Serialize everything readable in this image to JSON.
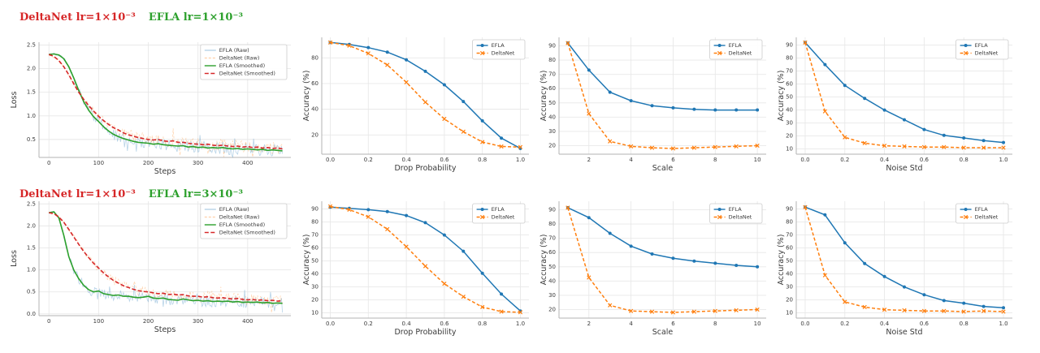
{
  "figure": {
    "colors": {
      "efla_blue": "#1f77b4",
      "deltanet_orange": "#ff7f0e",
      "efla_smoothed_green": "#2ca02c",
      "deltanet_smoothed_red": "#d62728",
      "grid": "#e8e8e8",
      "spine": "#b3b3b3"
    }
  },
  "chart_data": [
    {
      "id": "loss-row1",
      "type": "line",
      "kind": "loss",
      "title_red": "DeltaNet lr=1×10⁻³",
      "title_green": "EFLA lr=1×10⁻³",
      "xlabel": "Steps",
      "ylabel": "Loss",
      "xlim": [
        -20,
        487
      ],
      "ylim": [
        0.12,
        2.56
      ],
      "xticks": {
        "v": [
          0,
          100,
          200,
          300,
          400
        ],
        "l": [
          "0",
          "100",
          "200",
          "300",
          "400"
        ]
      },
      "yticks": {
        "v": [
          0.5,
          1.0,
          1.5,
          2.0,
          2.5
        ],
        "l": [
          "0.5",
          "1.0",
          "1.5",
          "2.0",
          "2.5"
        ]
      },
      "x_start": 0,
      "x_step": 10,
      "legend_position": "upper right",
      "grid": true,
      "series": [
        {
          "name": "EFLA (Raw)",
          "color": "#1f77b4",
          "width": 0.8,
          "opacity": 0.32,
          "from": 2,
          "noise": {
            "seed": 11,
            "amp0": 0.03,
            "amp1": 0.1,
            "step": 2,
            "spike": 0.06,
            "spike_mult": 2.3
          }
        },
        {
          "name": "DeltaNet (Raw)",
          "color": "#ff7f0e",
          "width": 0.8,
          "opacity": 0.32,
          "dash": [
            3,
            2
          ],
          "from": 3,
          "noise": {
            "seed": 29,
            "amp0": 0.03,
            "amp1": 0.1,
            "step": 2,
            "spike": 0.06,
            "spike_mult": 2.3
          }
        },
        {
          "name": "EFLA (Smoothed)",
          "color": "#2ca02c",
          "width": 1.6,
          "y": [
            2.3,
            2.31,
            2.29,
            2.21,
            2.04,
            1.8,
            1.54,
            1.3,
            1.12,
            0.98,
            0.88,
            0.77,
            0.68,
            0.61,
            0.56,
            0.52,
            0.49,
            0.46,
            0.44,
            0.43,
            0.42,
            0.4,
            0.41,
            0.39,
            0.38,
            0.37,
            0.36,
            0.37,
            0.34,
            0.35,
            0.33,
            0.34,
            0.32,
            0.33,
            0.32,
            0.33,
            0.31,
            0.3,
            0.31,
            0.29,
            0.3,
            0.29,
            0.28,
            0.29,
            0.27,
            0.28,
            0.27,
            0.26
          ]
        },
        {
          "name": "DeltaNet (Smoothed)",
          "color": "#d62728",
          "width": 1.6,
          "dash": [
            5,
            2.5
          ],
          "y": [
            2.3,
            2.26,
            2.17,
            2.04,
            1.87,
            1.68,
            1.5,
            1.35,
            1.22,
            1.1,
            0.99,
            0.9,
            0.82,
            0.75,
            0.7,
            0.64,
            0.6,
            0.57,
            0.54,
            0.52,
            0.5,
            0.49,
            0.5,
            0.47,
            0.46,
            0.47,
            0.44,
            0.44,
            0.42,
            0.41,
            0.4,
            0.39,
            0.4,
            0.38,
            0.37,
            0.38,
            0.36,
            0.35,
            0.36,
            0.34,
            0.35,
            0.33,
            0.34,
            0.32,
            0.33,
            0.31,
            0.32,
            0.3
          ]
        }
      ]
    },
    {
      "id": "drop-probability-row1",
      "type": "line",
      "kind": "acc",
      "xlabel": "Drop Probability",
      "ylabel": "Accuracy (%)",
      "x": [
        0.0,
        0.1,
        0.2,
        0.3,
        0.4,
        0.5,
        0.6,
        0.7,
        0.8,
        0.9,
        1.0
      ],
      "xlim": [
        -0.045,
        1.045
      ],
      "ylim": [
        5,
        96
      ],
      "xticks": {
        "v": [
          0.0,
          0.2,
          0.4,
          0.6,
          0.8,
          1.0
        ],
        "l": [
          "0.0",
          "0.2",
          "0.4",
          "0.6",
          "0.8",
          "1.0"
        ]
      },
      "yticks": {
        "v": [
          20,
          40,
          60,
          80
        ],
        "l": [
          "20",
          "40",
          "60",
          "80"
        ]
      },
      "legend_position": "upper right",
      "grid": true,
      "series": [
        {
          "name": "EFLA",
          "color": "#1f77b4",
          "width": 1.5,
          "marker": "circle",
          "y": [
            92,
            90.5,
            88,
            84.5,
            78.5,
            69.5,
            59,
            46,
            31,
            17.5,
            9.5
          ]
        },
        {
          "name": "DeltaNet",
          "color": "#ff7f0e",
          "width": 1.5,
          "dash": [
            4,
            2.5
          ],
          "marker": "x",
          "y": [
            92,
            89.5,
            83.5,
            74.5,
            61,
            45.5,
            32.5,
            22.5,
            14.5,
            11,
            10.5
          ]
        }
      ]
    },
    {
      "id": "scale-row1",
      "type": "line",
      "kind": "acc",
      "xlabel": "Scale",
      "ylabel": "Accuracy (%)",
      "x": [
        1,
        2,
        3,
        4,
        5,
        6,
        7,
        8,
        9,
        10
      ],
      "xlim": [
        0.58,
        10.42
      ],
      "ylim": [
        14,
        96
      ],
      "xticks": {
        "v": [
          2,
          4,
          6,
          8,
          10
        ],
        "l": [
          "2",
          "4",
          "6",
          "8",
          "10"
        ]
      },
      "yticks": {
        "v": [
          20,
          30,
          40,
          50,
          60,
          70,
          80,
          90
        ],
        "l": [
          "20",
          "30",
          "40",
          "50",
          "60",
          "70",
          "80",
          "90"
        ]
      },
      "legend_position": "upper right",
      "grid": true,
      "series": [
        {
          "name": "EFLA",
          "color": "#1f77b4",
          "width": 1.5,
          "marker": "circle",
          "y": [
            92,
            73,
            57.5,
            51.5,
            48,
            46.5,
            45.5,
            45,
            45,
            45
          ]
        },
        {
          "name": "DeltaNet",
          "color": "#ff7f0e",
          "width": 1.5,
          "dash": [
            4,
            2.5
          ],
          "marker": "x",
          "y": [
            92,
            42.5,
            23,
            19.5,
            18.5,
            18,
            18.5,
            19,
            19.5,
            20
          ]
        }
      ]
    },
    {
      "id": "noise-std-row1",
      "type": "line",
      "kind": "acc",
      "xlabel": "Noise Std",
      "ylabel": "Accuracy (%)",
      "x": [
        0.0,
        0.1,
        0.2,
        0.3,
        0.4,
        0.5,
        0.6,
        0.7,
        0.8,
        0.9,
        1.0
      ],
      "xlim": [
        -0.045,
        1.045
      ],
      "ylim": [
        6,
        96
      ],
      "xticks": {
        "v": [
          0.0,
          0.2,
          0.4,
          0.6,
          0.8,
          1.0
        ],
        "l": [
          "0.0",
          "0.2",
          "0.4",
          "0.6",
          "0.8",
          "1.0"
        ]
      },
      "yticks": {
        "v": [
          10,
          20,
          30,
          40,
          50,
          60,
          70,
          80,
          90
        ],
        "l": [
          "10",
          "20",
          "30",
          "40",
          "50",
          "60",
          "70",
          "80",
          "90"
        ]
      },
      "legend_position": "upper right",
      "grid": true,
      "series": [
        {
          "name": "EFLA",
          "color": "#1f77b4",
          "width": 1.5,
          "marker": "circle",
          "y": [
            92,
            75,
            59,
            49,
            40,
            32.5,
            25,
            20.5,
            18.5,
            16.5,
            15
          ]
        },
        {
          "name": "DeltaNet",
          "color": "#ff7f0e",
          "width": 1.5,
          "dash": [
            4,
            2.5
          ],
          "marker": "x",
          "y": [
            92,
            39,
            19,
            14.5,
            12.5,
            12,
            11.5,
            11.5,
            11,
            11,
            11
          ]
        }
      ]
    },
    {
      "id": "loss-row2",
      "type": "line",
      "kind": "loss",
      "title_red": "DeltaNet lr=1×10⁻³",
      "title_green": "EFLA lr=3×10⁻³",
      "xlabel": "Steps",
      "ylabel": "Loss",
      "xlim": [
        -20,
        487
      ],
      "ylim": [
        -0.04,
        2.56
      ],
      "xticks": {
        "v": [
          0,
          100,
          200,
          300,
          400
        ],
        "l": [
          "0",
          "100",
          "200",
          "300",
          "400"
        ]
      },
      "yticks": {
        "v": [
          0.0,
          0.5,
          1.0,
          1.5,
          2.0,
          2.5
        ],
        "l": [
          "0.0",
          "0.5",
          "1.0",
          "1.5",
          "2.0",
          "2.5"
        ]
      },
      "x_start": 0,
      "x_step": 10,
      "legend_position": "upper right",
      "grid": true,
      "series": [
        {
          "name": "EFLA (Raw)",
          "color": "#1f77b4",
          "width": 0.8,
          "opacity": 0.32,
          "from": 2,
          "noise": {
            "seed": 47,
            "amp0": 0.03,
            "amp1": 0.1,
            "step": 2,
            "spike": 0.06,
            "spike_mult": 2.3
          }
        },
        {
          "name": "DeltaNet (Raw)",
          "color": "#ff7f0e",
          "width": 0.8,
          "opacity": 0.32,
          "dash": [
            3,
            2
          ],
          "from": 3,
          "noise": {
            "seed": 61,
            "amp0": 0.03,
            "amp1": 0.1,
            "step": 2,
            "spike": 0.06,
            "spike_mult": 2.3
          }
        },
        {
          "name": "EFLA (Smoothed)",
          "color": "#2ca02c",
          "width": 1.6,
          "y": [
            2.3,
            2.32,
            2.18,
            1.78,
            1.3,
            1.0,
            0.8,
            0.65,
            0.55,
            0.5,
            0.52,
            0.46,
            0.44,
            0.42,
            0.43,
            0.4,
            0.4,
            0.38,
            0.37,
            0.38,
            0.4,
            0.36,
            0.35,
            0.36,
            0.33,
            0.32,
            0.31,
            0.34,
            0.32,
            0.3,
            0.31,
            0.29,
            0.3,
            0.28,
            0.29,
            0.28,
            0.29,
            0.27,
            0.28,
            0.26,
            0.27,
            0.26,
            0.27,
            0.25,
            0.26,
            0.24,
            0.25,
            0.24
          ]
        },
        {
          "name": "DeltaNet (Smoothed)",
          "color": "#d62728",
          "width": 1.6,
          "dash": [
            5,
            2.5
          ],
          "y": [
            2.3,
            2.28,
            2.2,
            2.08,
            1.92,
            1.75,
            1.58,
            1.42,
            1.28,
            1.15,
            1.04,
            0.93,
            0.84,
            0.76,
            0.7,
            0.64,
            0.6,
            0.56,
            0.53,
            0.51,
            0.5,
            0.48,
            0.46,
            0.47,
            0.44,
            0.45,
            0.43,
            0.44,
            0.41,
            0.4,
            0.4,
            0.38,
            0.39,
            0.37,
            0.36,
            0.37,
            0.35,
            0.34,
            0.35,
            0.33,
            0.32,
            0.33,
            0.31,
            0.32,
            0.3,
            0.31,
            0.29,
            0.3
          ]
        }
      ]
    },
    {
      "id": "drop-probability-row2",
      "type": "line",
      "kind": "acc",
      "xlabel": "Drop Probability",
      "ylabel": "Accuracy (%)",
      "x": [
        0.0,
        0.1,
        0.2,
        0.3,
        0.4,
        0.5,
        0.6,
        0.7,
        0.8,
        0.9,
        1.0
      ],
      "xlim": [
        -0.045,
        1.045
      ],
      "ylim": [
        6,
        96
      ],
      "xticks": {
        "v": [
          0.0,
          0.2,
          0.4,
          0.6,
          0.8,
          1.0
        ],
        "l": [
          "0.0",
          "0.2",
          "0.4",
          "0.6",
          "0.8",
          "1.0"
        ]
      },
      "yticks": {
        "v": [
          10,
          20,
          30,
          40,
          50,
          60,
          70,
          80,
          90
        ],
        "l": [
          "10",
          "20",
          "30",
          "40",
          "50",
          "60",
          "70",
          "80",
          "90"
        ]
      },
      "legend_position": "upper right",
      "grid": true,
      "series": [
        {
          "name": "EFLA",
          "color": "#1f77b4",
          "width": 1.5,
          "marker": "circle",
          "y": [
            91.5,
            90.5,
            89.5,
            88,
            85,
            79.5,
            70,
            57.5,
            40.5,
            24.5,
            11.5
          ]
        },
        {
          "name": "DeltaNet",
          "color": "#ff7f0e",
          "width": 1.5,
          "dash": [
            4,
            2.5
          ],
          "marker": "x",
          "y": [
            92,
            89.5,
            84,
            74.5,
            61,
            46,
            32.5,
            22.5,
            14.5,
            11,
            10.5
          ]
        }
      ]
    },
    {
      "id": "scale-row2",
      "type": "line",
      "kind": "acc",
      "xlabel": "Scale",
      "ylabel": "Accuracy (%)",
      "x": [
        1,
        2,
        3,
        4,
        5,
        6,
        7,
        8,
        9,
        10
      ],
      "xlim": [
        0.58,
        10.42
      ],
      "ylim": [
        14,
        96
      ],
      "xticks": {
        "v": [
          2,
          4,
          6,
          8,
          10
        ],
        "l": [
          "2",
          "4",
          "6",
          "8",
          "10"
        ]
      },
      "yticks": {
        "v": [
          20,
          30,
          40,
          50,
          60,
          70,
          80,
          90
        ],
        "l": [
          "20",
          "30",
          "40",
          "50",
          "60",
          "70",
          "80",
          "90"
        ]
      },
      "legend_position": "upper right",
      "grid": true,
      "series": [
        {
          "name": "EFLA",
          "color": "#1f77b4",
          "width": 1.5,
          "marker": "circle",
          "y": [
            91.5,
            84.5,
            73.5,
            64.5,
            59,
            56,
            54,
            52.5,
            51,
            50
          ]
        },
        {
          "name": "DeltaNet",
          "color": "#ff7f0e",
          "width": 1.5,
          "dash": [
            4,
            2.5
          ],
          "marker": "x",
          "y": [
            91.5,
            42.5,
            23,
            19,
            18.5,
            18,
            18.5,
            19,
            19.5,
            20
          ]
        }
      ]
    },
    {
      "id": "noise-std-row2",
      "type": "line",
      "kind": "acc",
      "xlabel": "Noise Std",
      "ylabel": "Accuracy (%)",
      "x": [
        0.0,
        0.1,
        0.2,
        0.3,
        0.4,
        0.5,
        0.6,
        0.7,
        0.8,
        0.9,
        1.0
      ],
      "xlim": [
        -0.045,
        1.045
      ],
      "ylim": [
        6,
        96
      ],
      "xticks": {
        "v": [
          0.0,
          0.2,
          0.4,
          0.6,
          0.8,
          1.0
        ],
        "l": [
          "0.0",
          "0.2",
          "0.4",
          "0.6",
          "0.8",
          "1.0"
        ]
      },
      "yticks": {
        "v": [
          10,
          20,
          30,
          40,
          50,
          60,
          70,
          80,
          90
        ],
        "l": [
          "10",
          "20",
          "30",
          "40",
          "50",
          "60",
          "70",
          "80",
          "90"
        ]
      },
      "legend_position": "upper right",
      "grid": true,
      "series": [
        {
          "name": "EFLA",
          "color": "#1f77b4",
          "width": 1.5,
          "marker": "circle",
          "y": [
            91.5,
            85.5,
            64,
            48,
            38,
            30,
            24,
            19.5,
            17.5,
            15,
            14
          ]
        },
        {
          "name": "DeltaNet",
          "color": "#ff7f0e",
          "width": 1.5,
          "dash": [
            4,
            2.5
          ],
          "marker": "x",
          "y": [
            91.5,
            39,
            18.5,
            14.5,
            12.5,
            12,
            11.5,
            11.5,
            11,
            11.5,
            11
          ]
        }
      ]
    }
  ]
}
